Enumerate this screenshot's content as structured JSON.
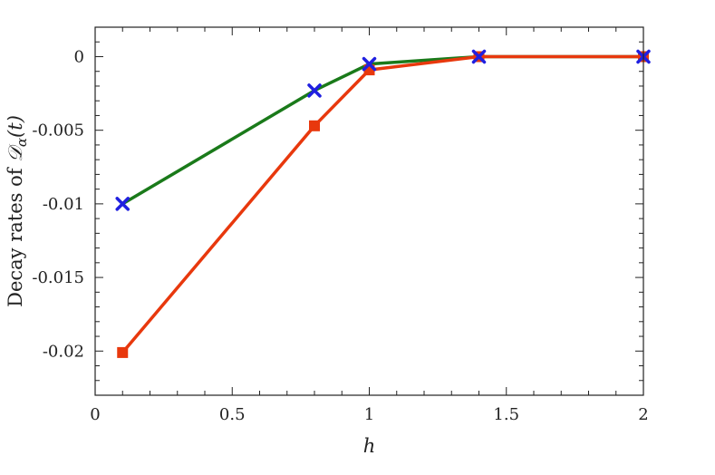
{
  "chart_data": {
    "type": "line",
    "xlabel": "h",
    "ylabel": "Decay rates of 𝒟α(t)",
    "ylabel_prefix": "Decay rates of ",
    "ylabel_symbol": "𝒟",
    "ylabel_subscript": "α",
    "ylabel_suffix": "(t)",
    "xlim": [
      0,
      2
    ],
    "ylim": [
      -0.023,
      0.002
    ],
    "xticks": [
      0,
      0.5,
      1,
      1.5,
      2
    ],
    "xtick_labels": [
      "0",
      "0.5",
      "1",
      "1.5",
      "2"
    ],
    "yticks": [
      0,
      -0.005,
      -0.01,
      -0.015,
      -0.02
    ],
    "ytick_labels": [
      "0",
      "-0.005",
      "-0.01",
      "-0.015",
      "-0.02"
    ],
    "grid": false,
    "series": [
      {
        "color": "#1a7a1a",
        "x": [
          0.1,
          0.8,
          1.0,
          1.4,
          2.0
        ],
        "y": [
          -0.01,
          -0.0023,
          -0.0005,
          0.0,
          0.0
        ]
      },
      {
        "color": "#e8380d",
        "marker": "square",
        "x": [
          0.1,
          0.8,
          1.0,
          1.4,
          2.0
        ],
        "y": [
          -0.0201,
          -0.0047,
          -0.0009,
          0.0,
          0.0
        ]
      },
      {
        "color": "#2020e0",
        "marker": "x",
        "x": [
          0.1,
          0.8,
          1.0,
          1.4,
          2.0
        ],
        "y": [
          -0.01,
          -0.0023,
          -0.0005,
          0.0,
          0.0
        ]
      }
    ]
  }
}
